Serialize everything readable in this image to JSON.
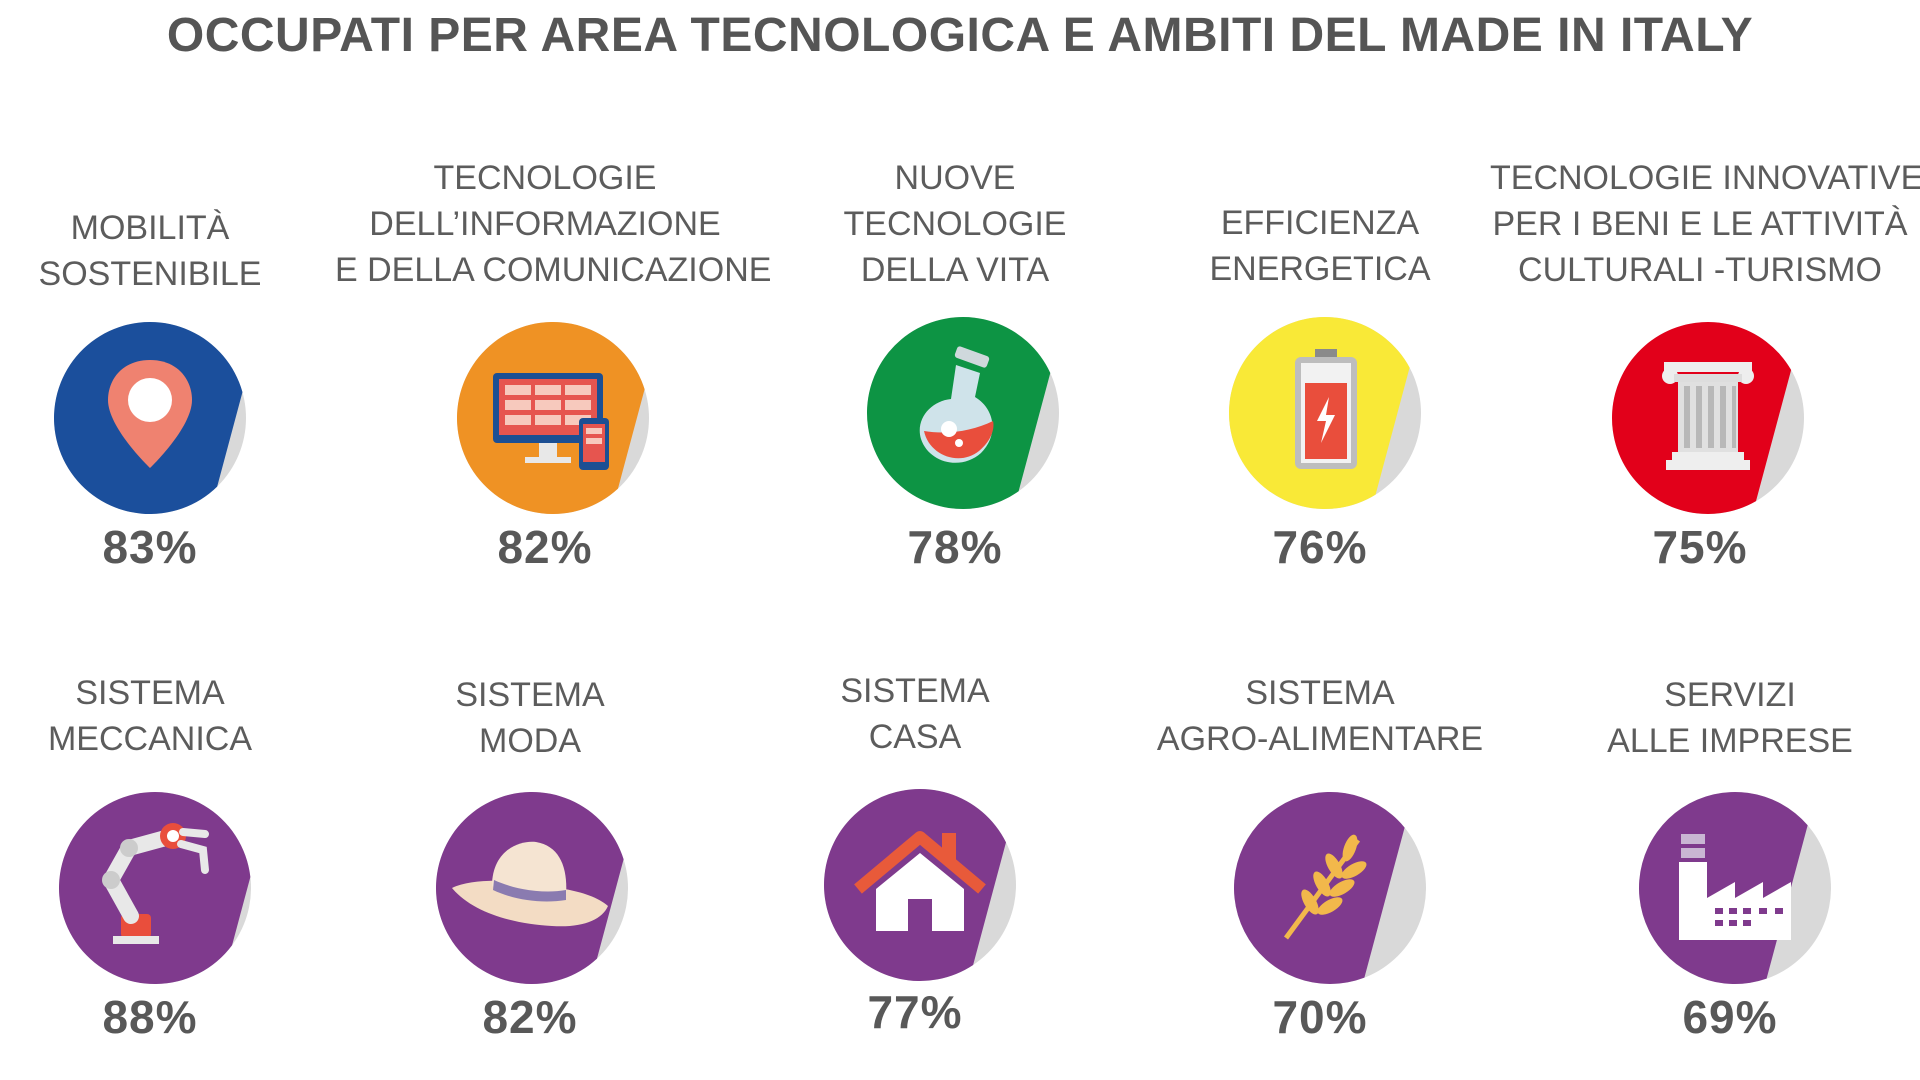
{
  "title": "OCCUPATI PER AREA TECNOLOGICA E AMBITI DEL MADE IN ITALY",
  "colors": {
    "remainder": "#d9d9d9",
    "text": "#5a5a5a"
  },
  "chart_data": {
    "type": "pie",
    "title": "OCCUPATI PER AREA TECNOLOGICA E AMBITI DEL MADE IN ITALY",
    "unit": "%",
    "categories": [
      "MOBILITÀ SOSTENIBILE",
      "TECNOLOGIE DELL’INFORMAZIONE E DELLA COMUNICAZIONE",
      "NUOVE TECNOLOGIE DELLA VITA",
      "EFFICIENZA ENERGETICA",
      "TECNOLOGIE INNOVATIVE PER I BENI E LE ATTIVITÀ CULTURALI -TURISMO",
      "SISTEMA MECCANICA",
      "SISTEMA MODA",
      "SISTEMA CASA",
      "SISTEMA AGRO-ALIMENTARE",
      "SERVIZI ALLE IMPRESE"
    ],
    "values": [
      83,
      82,
      78,
      76,
      75,
      88,
      82,
      77,
      70,
      69
    ],
    "items": [
      {
        "label_lines": [
          "MOBILITÀ",
          "SOSTENIBILE"
        ],
        "value": 83,
        "value_label": "83%",
        "color": "#1b4f9c",
        "icon": "map-pin-icon"
      },
      {
        "label_lines": [
          "TECNOLOGIE",
          "DELL’INFORMAZIONE",
          "E DELLA COMUNICAZIONE"
        ],
        "value": 82,
        "value_label": "82%",
        "color": "#ef9224",
        "icon": "computer-devices-icon"
      },
      {
        "label_lines": [
          "NUOVE",
          "TECNOLOGIE",
          "DELLA VITA"
        ],
        "value": 78,
        "value_label": "78%",
        "color": "#0d9444",
        "icon": "flask-icon"
      },
      {
        "label_lines": [
          "EFFICIENZA",
          "ENERGETICA"
        ],
        "value": 76,
        "value_label": "76%",
        "color": "#f9e937",
        "icon": "battery-icon"
      },
      {
        "label_lines": [
          "TECNOLOGIE INNOVATIVE",
          "PER I BENI E LE ATTIVITÀ",
          "CULTURALI -TURISMO"
        ],
        "value": 75,
        "value_label": "75%",
        "color": "#e2001a",
        "icon": "column-icon"
      },
      {
        "label_lines": [
          "SISTEMA",
          "MECCANICA"
        ],
        "value": 88,
        "value_label": "88%",
        "color": "#7f3a8d",
        "icon": "robot-arm-icon"
      },
      {
        "label_lines": [
          "SISTEMA",
          "MODA"
        ],
        "value": 82,
        "value_label": "82%",
        "color": "#7f3a8d",
        "icon": "hat-icon"
      },
      {
        "label_lines": [
          "SISTEMA",
          "CASA"
        ],
        "value": 77,
        "value_label": "77%",
        "color": "#7f3a8d",
        "icon": "house-icon"
      },
      {
        "label_lines": [
          "SISTEMA",
          "AGRO-ALIMENTARE"
        ],
        "value": 70,
        "value_label": "70%",
        "color": "#7f3a8d",
        "icon": "wheat-icon"
      },
      {
        "label_lines": [
          "SERVIZI",
          "ALLE IMPRESE"
        ],
        "value": 69,
        "value_label": "69%",
        "color": "#7f3a8d",
        "icon": "factory-icon"
      }
    ]
  }
}
